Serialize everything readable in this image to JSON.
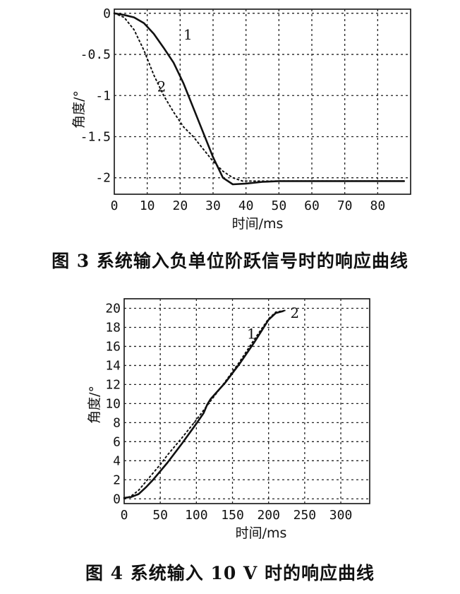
{
  "chart_data": [
    {
      "type": "line",
      "caption": "图 3   系统输入负单位阶跃信号时的响应曲线",
      "xlabel": "时间/ms",
      "ylabel": "角度/°",
      "xlim": [
        0,
        90
      ],
      "ylim": [
        -2.2,
        0.05
      ],
      "xticks": [
        "0",
        "10",
        "20",
        "30",
        "40",
        "50",
        "60",
        "70",
        "80"
      ],
      "yticks": [
        "0",
        "-0.5",
        "-1",
        "-1.5",
        "-2"
      ],
      "ytick_values": [
        0,
        -0.5,
        -1,
        -1.5,
        -2
      ],
      "grid": true,
      "series": [
        {
          "name": "1",
          "style": "solid",
          "x": [
            0,
            3,
            6,
            9,
            12,
            15,
            18,
            21,
            24,
            27,
            30,
            33,
            36,
            40,
            45,
            50,
            60,
            70,
            80,
            88
          ],
          "y": [
            0,
            -0.02,
            -0.05,
            -0.12,
            -0.25,
            -0.42,
            -0.6,
            -0.85,
            -1.15,
            -1.45,
            -1.75,
            -2.0,
            -2.08,
            -2.07,
            -2.05,
            -2.04,
            -2.04,
            -2.04,
            -2.04,
            -2.04
          ]
        },
        {
          "name": "2",
          "style": "dotted",
          "x": [
            0,
            3,
            6,
            9,
            12,
            15,
            18,
            21,
            24,
            27,
            30,
            33,
            36,
            39,
            42,
            48,
            60,
            70,
            80,
            88
          ],
          "y": [
            0,
            -0.05,
            -0.2,
            -0.45,
            -0.75,
            -1.0,
            -1.2,
            -1.38,
            -1.5,
            -1.65,
            -1.8,
            -1.92,
            -2.0,
            -2.04,
            -2.04,
            -2.04,
            -2.04,
            -2.04,
            -2.04,
            -2.04
          ]
        }
      ],
      "curve_labels": [
        {
          "text": "1",
          "x": 21,
          "y": -0.32
        },
        {
          "text": "2",
          "x": 13,
          "y": -0.95
        }
      ]
    },
    {
      "type": "line",
      "caption": "图 4  系统输入 10 V 时的响应曲线",
      "xlabel": "时间/ms",
      "ylabel": "角度/°",
      "xlim": [
        0,
        340
      ],
      "ylim": [
        -0.5,
        21
      ],
      "xticks": [
        "0",
        "50",
        "100",
        "150",
        "200",
        "250",
        "300"
      ],
      "yticks": [
        "0",
        "2",
        "4",
        "6",
        "8",
        "10",
        "12",
        "14",
        "16",
        "18",
        "20"
      ],
      "ytick_values": [
        0,
        2,
        4,
        6,
        8,
        10,
        12,
        14,
        16,
        18,
        20
      ],
      "grid": true,
      "series": [
        {
          "name": "1",
          "style": "solid",
          "x": [
            0,
            10,
            20,
            30,
            40,
            50,
            60,
            80,
            100,
            110,
            115,
            120,
            140,
            160,
            180,
            200,
            210,
            220
          ],
          "y": [
            0.1,
            0.2,
            0.5,
            1.2,
            2.0,
            2.9,
            3.8,
            5.8,
            7.9,
            9.0,
            9.9,
            10.5,
            12.2,
            14.2,
            16.4,
            18.8,
            19.5,
            19.7
          ]
        },
        {
          "name": "2",
          "style": "dotted",
          "x": [
            0,
            10,
            20,
            30,
            40,
            50,
            60,
            80,
            100,
            120,
            140,
            160,
            180,
            200,
            210,
            225
          ],
          "y": [
            0,
            0.3,
            0.9,
            1.8,
            2.7,
            3.6,
            4.6,
            6.4,
            8.3,
            10.3,
            12.3,
            14.4,
            16.7,
            18.9,
            19.6,
            19.8
          ]
        }
      ],
      "curve_labels": [
        {
          "text": "1",
          "x": 170,
          "y": 16.8
        },
        {
          "text": "2",
          "x": 230,
          "y": 19.0
        }
      ]
    }
  ]
}
